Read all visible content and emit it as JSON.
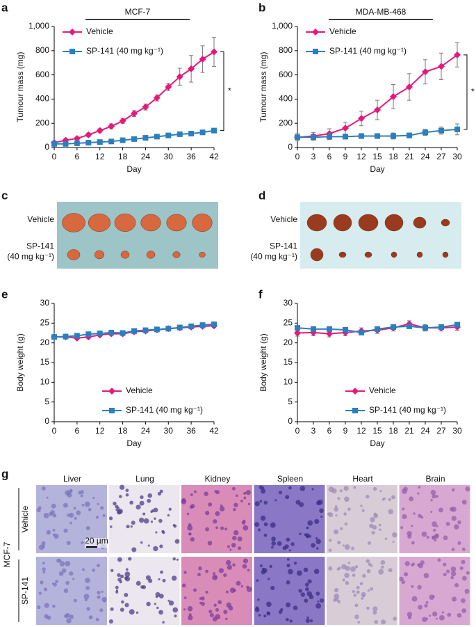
{
  "chart_data": [
    {
      "type": "line",
      "panel": "a",
      "title": "MCF-7",
      "xlabel": "Day",
      "ylabel": "Tumour mass (mg)",
      "x": [
        0,
        3,
        6,
        9,
        12,
        15,
        18,
        21,
        24,
        27,
        30,
        33,
        36,
        39,
        42
      ],
      "xlim": [
        0,
        42
      ],
      "xticks": [
        0,
        6,
        12,
        18,
        24,
        30,
        36,
        42
      ],
      "ylim": [
        0,
        1000
      ],
      "yticks": [
        0,
        200,
        400,
        600,
        800,
        {
          "value": 1000,
          "label": "1,000"
        }
      ],
      "legend": "upper left",
      "annotation": "*",
      "series": [
        {
          "name": "Vehicle",
          "color": "#e6197a",
          "marker": "diamond",
          "values": [
            40,
            60,
            75,
            105,
            140,
            175,
            220,
            280,
            335,
            410,
            500,
            585,
            650,
            730,
            790
          ],
          "errors": [
            10,
            10,
            10,
            15,
            15,
            20,
            20,
            25,
            25,
            25,
            30,
            70,
            110,
            110,
            120
          ]
        },
        {
          "name": "SP-141 (40 mg kg⁻¹)",
          "color": "#2a7fc1",
          "marker": "square",
          "values": [
            30,
            30,
            35,
            40,
            45,
            50,
            60,
            70,
            80,
            90,
            100,
            110,
            115,
            125,
            140
          ],
          "errors": [
            5,
            5,
            5,
            5,
            6,
            6,
            7,
            7,
            8,
            8,
            8,
            9,
            9,
            10,
            10
          ]
        }
      ]
    },
    {
      "type": "line",
      "panel": "b",
      "title": "MDA-MB-468",
      "xlabel": "Day",
      "ylabel": "Tumour mass (mg)",
      "x": [
        0,
        3,
        6,
        9,
        12,
        15,
        18,
        21,
        24,
        27,
        30
      ],
      "xlim": [
        0,
        30
      ],
      "xticks": [
        0,
        3,
        6,
        9,
        12,
        15,
        18,
        21,
        24,
        27,
        30
      ],
      "ylim": [
        0,
        1000
      ],
      "yticks": [
        0,
        200,
        400,
        600,
        800,
        {
          "value": 1000,
          "label": "1,000"
        }
      ],
      "legend": "upper left",
      "annotation": "*",
      "series": [
        {
          "name": "Vehicle",
          "color": "#e6197a",
          "marker": "diamond",
          "values": [
            85,
            95,
            115,
            160,
            240,
            310,
            420,
            500,
            625,
            670,
            765
          ],
          "errors": [
            30,
            30,
            40,
            50,
            60,
            80,
            100,
            110,
            100,
            110,
            100
          ]
        },
        {
          "name": "SP-141 (40 mg kg⁻¹)",
          "color": "#2a7fc1",
          "marker": "square",
          "values": [
            85,
            85,
            90,
            90,
            95,
            95,
            95,
            100,
            125,
            140,
            150
          ],
          "errors": [
            30,
            25,
            25,
            20,
            20,
            20,
            25,
            20,
            25,
            30,
            45
          ]
        }
      ]
    },
    {
      "type": "line",
      "panel": "e",
      "xlabel": "Day",
      "ylabel": "Body weight (g)",
      "x": [
        0,
        3,
        6,
        9,
        12,
        15,
        18,
        21,
        24,
        27,
        30,
        33,
        36,
        39,
        42
      ],
      "xlim": [
        0,
        42
      ],
      "xticks": [
        0,
        6,
        12,
        18,
        24,
        30,
        36,
        42
      ],
      "ylim": [
        0,
        30
      ],
      "yticks": [
        0,
        5,
        10,
        15,
        20,
        25,
        30
      ],
      "legend": "lower center",
      "series": [
        {
          "name": "Vehicle",
          "color": "#e6197a",
          "marker": "diamond",
          "values": [
            21.5,
            21.5,
            21.2,
            21.5,
            22,
            22.3,
            22.3,
            22.8,
            23,
            23.3,
            23.6,
            23.8,
            24,
            24.2,
            24.3
          ],
          "errors": [
            0.4,
            0.4,
            0.4,
            0.4,
            0.4,
            0.4,
            0.4,
            0.4,
            0.4,
            0.4,
            0.4,
            0.4,
            0.4,
            0.4,
            0.4
          ]
        },
        {
          "name": "SP-141 (40 mg kg⁻¹)",
          "color": "#2a7fc1",
          "marker": "square",
          "values": [
            21.5,
            21.6,
            21.8,
            22.2,
            22.4,
            22.6,
            22.5,
            23,
            23.2,
            23.4,
            23.6,
            23.9,
            24.2,
            24.5,
            24.7
          ],
          "errors": [
            0.4,
            0.4,
            0.4,
            0.4,
            0.4,
            0.4,
            0.4,
            0.4,
            0.4,
            0.4,
            0.4,
            0.4,
            0.4,
            0.4,
            0.4
          ]
        }
      ]
    },
    {
      "type": "line",
      "panel": "f",
      "xlabel": "Day",
      "ylabel": "Body weight (g)",
      "x": [
        0,
        3,
        6,
        9,
        12,
        15,
        18,
        21,
        24,
        27,
        30
      ],
      "xlim": [
        0,
        30
      ],
      "xticks": [
        0,
        3,
        6,
        9,
        12,
        15,
        18,
        21,
        24,
        27,
        30
      ],
      "ylim": [
        0,
        30
      ],
      "yticks": [
        0,
        5,
        10,
        15,
        20,
        25,
        30
      ],
      "legend": "lower center",
      "series": [
        {
          "name": "Vehicle",
          "color": "#e6197a",
          "marker": "diamond",
          "values": [
            22.5,
            22.6,
            22.3,
            22.6,
            23,
            23.2,
            23.8,
            24.8,
            23.8,
            23.8,
            24
          ],
          "errors": [
            0.8,
            0.8,
            0.8,
            0.8,
            0.8,
            0.8,
            0.8,
            0.8,
            0.8,
            0.8,
            0.8
          ]
        },
        {
          "name": "SP-141 (40 mg kg⁻¹)",
          "color": "#2a7fc1",
          "marker": "square",
          "values": [
            23.8,
            23.5,
            23.5,
            23.3,
            22.6,
            23.5,
            24,
            24.2,
            23.8,
            24,
            24.6
          ],
          "errors": [
            0.5,
            0.5,
            0.5,
            0.5,
            0.5,
            0.5,
            0.5,
            0.5,
            0.5,
            0.5,
            0.5
          ]
        }
      ]
    }
  ],
  "photos": [
    {
      "panel": "c",
      "row_labels": [
        [
          "Vehicle"
        ],
        [
          "SP-141",
          "(40 mg kg⁻¹)"
        ]
      ]
    },
    {
      "panel": "d",
      "row_labels": [
        [
          "Vehicle"
        ],
        [
          "SP-141",
          "(40 mg kg⁻¹)"
        ]
      ]
    }
  ],
  "histology": {
    "panel": "g",
    "columns": [
      "Liver",
      "Lung",
      "Kidney",
      "Spleen",
      "Heart",
      "Brain"
    ],
    "rows": [
      "Vehicle",
      "SP-141"
    ],
    "group": "MCF-7",
    "scale_bar": "20 µm"
  }
}
